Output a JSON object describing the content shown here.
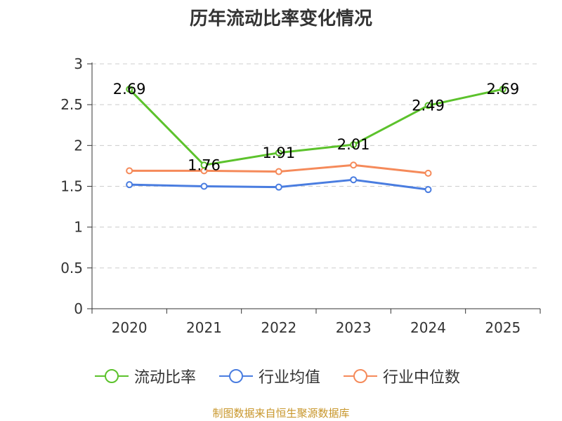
{
  "chart_data": {
    "type": "line",
    "title": "历年流动比率变化情况",
    "categories": [
      "2020",
      "2021",
      "2022",
      "2023",
      "2024",
      "2025"
    ],
    "ylim": [
      0,
      3
    ],
    "yticks": [
      "0",
      "0.5",
      "1",
      "1.5",
      "2",
      "2.5",
      "3"
    ],
    "grid": true,
    "legend_position": "bottom",
    "series": [
      {
        "name": "流动比率",
        "color": "#5cc22c",
        "values": [
          2.69,
          1.76,
          1.91,
          2.01,
          2.49,
          2.69
        ],
        "labels": [
          "2.69",
          "1.76",
          "1.91",
          "2.01",
          "2.49",
          "2.69"
        ]
      },
      {
        "name": "行业均值",
        "color": "#4a7de0",
        "values": [
          1.52,
          1.5,
          1.49,
          1.58,
          1.46,
          null
        ]
      },
      {
        "name": "行业中位数",
        "color": "#f58a5a",
        "values": [
          1.69,
          1.69,
          1.68,
          1.76,
          1.66,
          null
        ]
      }
    ]
  },
  "source_note": "制图数据来自恒生聚源数据库"
}
